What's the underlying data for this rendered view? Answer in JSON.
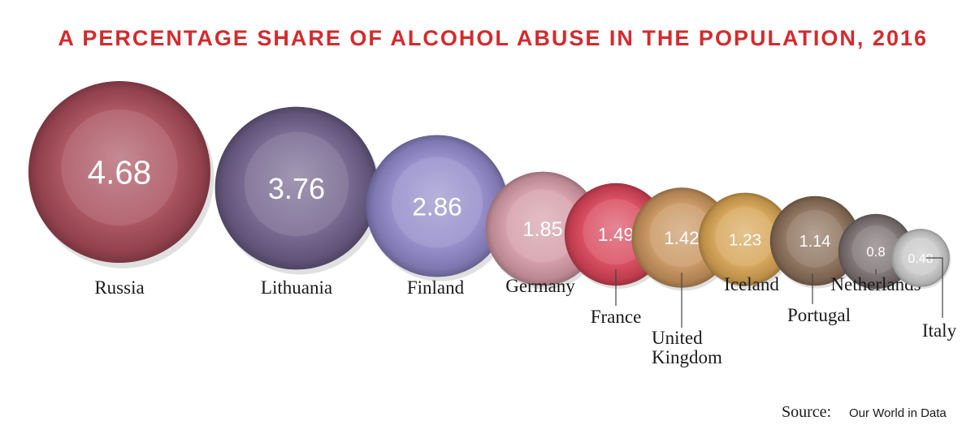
{
  "chart_data": {
    "type": "bubble",
    "title": "A PERCENTAGE SHARE OF ALCOHOL ABUSE IN  THE POPULATION, 2016",
    "unit": "",
    "categories": [
      "Russia",
      "Lithuania",
      "Finland",
      "Germany",
      "France",
      "United Kingdom",
      "Iceland",
      "Portugal",
      "Netherlands",
      "Italy"
    ],
    "values": [
      4.68,
      3.76,
      2.86,
      1.85,
      1.49,
      1.42,
      1.23,
      1.14,
      0.8,
      0.48
    ],
    "value_labels": [
      "4.68",
      "3.76",
      "2.86",
      "1.85",
      "1.49",
      "1.42",
      "1.23",
      "1.14",
      "0.8",
      "0.48"
    ],
    "label_lines": [
      [
        "Russia"
      ],
      [
        "Lithuania"
      ],
      [
        "Finland"
      ],
      [
        "Germany"
      ],
      [
        "France"
      ],
      [
        "United",
        "Kingdom"
      ],
      [
        "Iceland"
      ],
      [
        "Portugal"
      ],
      [
        "Netherlands"
      ],
      [
        "Italy"
      ]
    ],
    "colors": [
      "#a64a58",
      "#6e5f8a",
      "#8f87c8",
      "#d49aa6",
      "#d84458",
      "#c8935c",
      "#d6a352",
      "#8a6e58",
      "#7a6e70",
      "#c8c8c8"
    ],
    "source_prefix": "Source:",
    "source_name": "Our World in Data"
  }
}
